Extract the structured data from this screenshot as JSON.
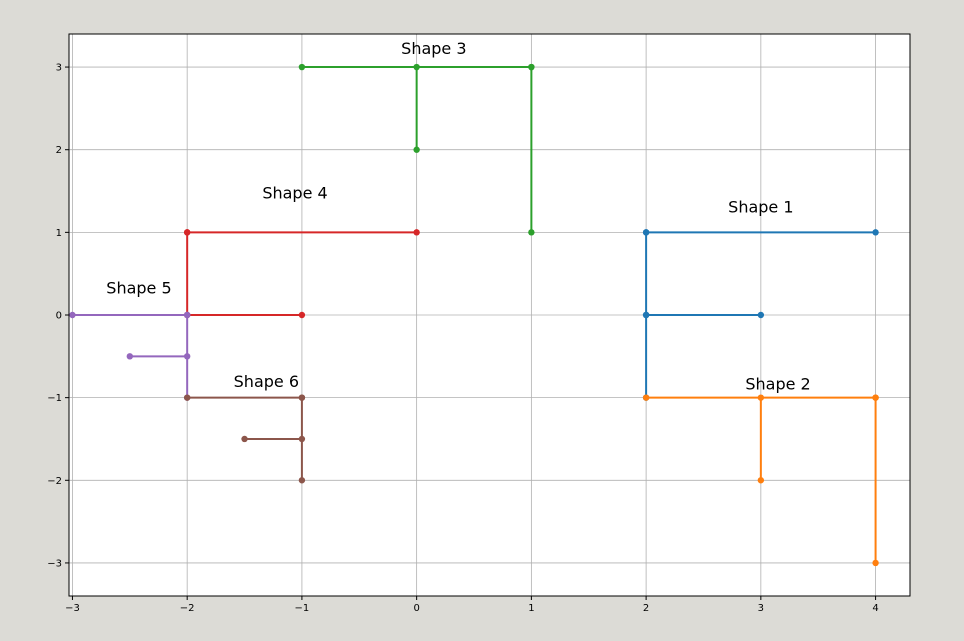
{
  "chart_data": {
    "type": "line",
    "title": "",
    "xlabel": "",
    "ylabel": "",
    "xlim": [
      -3.03,
      4.3
    ],
    "ylim": [
      -3.4,
      3.4
    ],
    "xticks": [
      -3,
      -2,
      -1,
      0,
      1,
      2,
      3,
      4
    ],
    "yticks": [
      -3,
      -2,
      -1,
      0,
      1,
      2,
      3
    ],
    "grid": true,
    "legend": "none",
    "series": [
      {
        "color": "#1f77b4",
        "label": "Shape 1",
        "label_at": [
          3.0,
          1.3
        ],
        "segments": [
          [
            [
              2,
              1
            ],
            [
              4,
              1
            ]
          ],
          [
            [
              2,
              1
            ],
            [
              2,
              0
            ]
          ],
          [
            [
              2,
              0
            ],
            [
              3,
              0
            ]
          ],
          [
            [
              2,
              0
            ],
            [
              2,
              -1
            ]
          ]
        ]
      },
      {
        "color": "#ff7f0e",
        "label": "Shape 2",
        "label_at": [
          3.15,
          -0.84
        ],
        "segments": [
          [
            [
              2,
              -1
            ],
            [
              4,
              -1
            ]
          ],
          [
            [
              3,
              -1
            ],
            [
              3,
              -2
            ]
          ],
          [
            [
              4,
              -1
            ],
            [
              4,
              -3
            ]
          ]
        ]
      },
      {
        "color": "#2ca02c",
        "label": "Shape 3",
        "label_at": [
          0.15,
          3.22
        ],
        "segments": [
          [
            [
              -1,
              3
            ],
            [
              1,
              3
            ]
          ],
          [
            [
              0,
              3
            ],
            [
              0,
              2
            ]
          ],
          [
            [
              1,
              3
            ],
            [
              1,
              1
            ]
          ]
        ]
      },
      {
        "color": "#d62728",
        "label": "Shape 4",
        "label_at": [
          -1.06,
          1.47
        ],
        "segments": [
          [
            [
              -2,
              1
            ],
            [
              0,
              1
            ]
          ],
          [
            [
              -2,
              1
            ],
            [
              -2,
              0
            ]
          ],
          [
            [
              -2,
              0
            ],
            [
              -1,
              0
            ]
          ]
        ]
      },
      {
        "color": "#9467bd",
        "label": "Shape 5",
        "label_at": [
          -2.42,
          0.32
        ],
        "segments": [
          [
            [
              -3,
              0
            ],
            [
              -2,
              0
            ]
          ],
          [
            [
              -2,
              0
            ],
            [
              -2,
              -1
            ]
          ],
          [
            [
              -2.5,
              -0.5
            ],
            [
              -2,
              -0.5
            ]
          ]
        ]
      },
      {
        "color": "#8c564b",
        "label": "Shape 6",
        "label_at": [
          -1.31,
          -0.81
        ],
        "segments": [
          [
            [
              -2,
              -1
            ],
            [
              -1,
              -1
            ]
          ],
          [
            [
              -1,
              -1
            ],
            [
              -1,
              -2
            ]
          ],
          [
            [
              -1.5,
              -1.5
            ],
            [
              -1,
              -1.5
            ]
          ]
        ]
      }
    ]
  }
}
